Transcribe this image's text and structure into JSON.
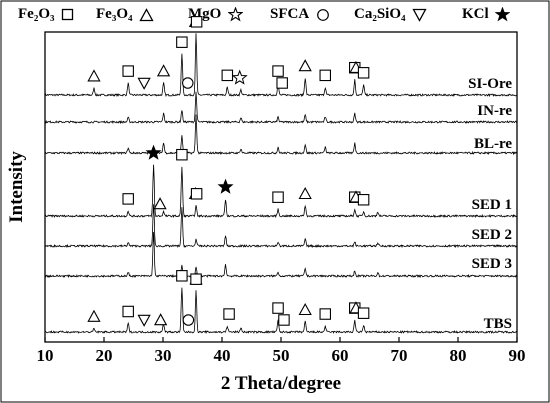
{
  "chart_data": {
    "type": "line",
    "xlabel": "2 Theta/degree",
    "ylabel": "Intensity",
    "xlim": [
      10,
      90
    ],
    "x_ticks": [
      10,
      20,
      30,
      40,
      50,
      60,
      70,
      80,
      90
    ],
    "legend": [
      {
        "label": "Fe₂O₃",
        "marker": "square"
      },
      {
        "label": "Fe₃O₄",
        "marker": "triangle"
      },
      {
        "label": "MgO",
        "marker": "star-open"
      },
      {
        "label": "SFCA",
        "marker": "circle"
      },
      {
        "label": "Ca₂SiO₄",
        "marker": "triangle-down"
      },
      {
        "label": "KCl",
        "marker": "star-filled"
      }
    ],
    "series": [
      {
        "name": "SI-Ore",
        "peaks": [
          [
            18.3,
            8
          ],
          [
            24.1,
            14
          ],
          [
            30.1,
            14
          ],
          [
            33.2,
            48
          ],
          [
            35.6,
            72
          ],
          [
            40.9,
            9
          ],
          [
            43.2,
            6
          ],
          [
            49.5,
            14
          ],
          [
            54.1,
            20
          ],
          [
            57.5,
            9
          ],
          [
            62.5,
            18
          ],
          [
            64.0,
            12
          ]
        ],
        "markers": [
          {
            "x": 18.3,
            "symbol": "triangle"
          },
          {
            "x": 24.1,
            "symbol": "square"
          },
          {
            "x": 26.8,
            "symbol": "triangle-down"
          },
          {
            "x": 30.1,
            "symbol": "triangle"
          },
          {
            "x": 33.2,
            "symbol": "square"
          },
          {
            "x": 34.2,
            "symbol": "circle"
          },
          {
            "x": 35.5,
            "symbol": "triangle"
          },
          {
            "x": 35.7,
            "symbol": "square"
          },
          {
            "x": 40.9,
            "symbol": "square"
          },
          {
            "x": 43.0,
            "symbol": "star-open"
          },
          {
            "x": 49.5,
            "symbol": "square"
          },
          {
            "x": 50.2,
            "symbol": "square"
          },
          {
            "x": 54.1,
            "symbol": "triangle"
          },
          {
            "x": 57.5,
            "symbol": "square"
          },
          {
            "x": 62.5,
            "symbol": "square"
          },
          {
            "x": 62.7,
            "symbol": "triangle"
          },
          {
            "x": 64.0,
            "symbol": "square"
          }
        ]
      },
      {
        "name": "IN-re",
        "peaks": [
          [
            24.1,
            5
          ],
          [
            30.1,
            10
          ],
          [
            33.2,
            14
          ],
          [
            35.6,
            35
          ],
          [
            43.2,
            5
          ],
          [
            49.5,
            6
          ],
          [
            54.1,
            8
          ],
          [
            57.5,
            6
          ],
          [
            62.5,
            10
          ]
        ],
        "markers": []
      },
      {
        "name": "BL-re",
        "peaks": [
          [
            24.1,
            6
          ],
          [
            30.1,
            12
          ],
          [
            33.2,
            20
          ],
          [
            35.6,
            45
          ],
          [
            43.2,
            5
          ],
          [
            49.5,
            7
          ],
          [
            54.1,
            10
          ],
          [
            57.5,
            7
          ],
          [
            62.5,
            12
          ]
        ],
        "markers": []
      },
      {
        "name": "SED 1",
        "peaks": [
          [
            24.1,
            6
          ],
          [
            28.4,
            60
          ],
          [
            30.1,
            5
          ],
          [
            33.2,
            58
          ],
          [
            35.6,
            12
          ],
          [
            40.6,
            20
          ],
          [
            49.5,
            8
          ],
          [
            54.1,
            12
          ],
          [
            62.5,
            8
          ],
          [
            64.0,
            5
          ],
          [
            66.4,
            5
          ]
        ],
        "markers": [
          {
            "x": 24.1,
            "symbol": "square"
          },
          {
            "x": 28.4,
            "symbol": "star-filled"
          },
          {
            "x": 29.5,
            "symbol": "triangle"
          },
          {
            "x": 33.2,
            "symbol": "square"
          },
          {
            "x": 35.5,
            "symbol": "triangle"
          },
          {
            "x": 35.7,
            "symbol": "square"
          },
          {
            "x": 40.6,
            "symbol": "star-filled"
          },
          {
            "x": 49.5,
            "symbol": "square"
          },
          {
            "x": 54.1,
            "symbol": "triangle"
          },
          {
            "x": 62.5,
            "symbol": "square"
          },
          {
            "x": 62.7,
            "symbol": "triangle"
          },
          {
            "x": 64.0,
            "symbol": "square"
          }
        ]
      },
      {
        "name": "SED 2",
        "peaks": [
          [
            24.1,
            4
          ],
          [
            28.4,
            50
          ],
          [
            33.2,
            45
          ],
          [
            35.6,
            8
          ],
          [
            40.6,
            12
          ],
          [
            49.5,
            5
          ],
          [
            54.1,
            8
          ],
          [
            62.5,
            5
          ],
          [
            66.4,
            4
          ]
        ],
        "markers": []
      },
      {
        "name": "SED 3",
        "peaks": [
          [
            24.1,
            4
          ],
          [
            28.4,
            52
          ],
          [
            33.2,
            12
          ],
          [
            35.6,
            10
          ],
          [
            40.6,
            14
          ],
          [
            49.5,
            5
          ],
          [
            54.1,
            9
          ],
          [
            62.5,
            6
          ],
          [
            66.4,
            4
          ]
        ],
        "markers": []
      },
      {
        "name": "TBS",
        "peaks": [
          [
            18.3,
            4
          ],
          [
            24.1,
            10
          ],
          [
            30.1,
            10
          ],
          [
            33.2,
            52
          ],
          [
            35.6,
            48
          ],
          [
            40.9,
            7
          ],
          [
            43.2,
            5
          ],
          [
            49.5,
            14
          ],
          [
            54.1,
            12
          ],
          [
            57.5,
            7
          ],
          [
            62.5,
            14
          ],
          [
            64.0,
            8
          ]
        ],
        "markers": [
          {
            "x": 18.3,
            "symbol": "triangle"
          },
          {
            "x": 24.1,
            "symbol": "square"
          },
          {
            "x": 26.8,
            "symbol": "triangle-down"
          },
          {
            "x": 29.6,
            "symbol": "triangle"
          },
          {
            "x": 33.2,
            "symbol": "square"
          },
          {
            "x": 34.3,
            "symbol": "circle"
          },
          {
            "x": 35.6,
            "symbol": "triangle"
          },
          {
            "x": 35.6,
            "symbol": "square"
          },
          {
            "x": 41.2,
            "symbol": "square"
          },
          {
            "x": 49.5,
            "symbol": "square"
          },
          {
            "x": 50.5,
            "symbol": "square"
          },
          {
            "x": 54.1,
            "symbol": "triangle"
          },
          {
            "x": 57.5,
            "symbol": "square"
          },
          {
            "x": 62.5,
            "symbol": "square"
          },
          {
            "x": 62.7,
            "symbol": "triangle"
          },
          {
            "x": 64.0,
            "symbol": "square"
          }
        ]
      }
    ]
  }
}
